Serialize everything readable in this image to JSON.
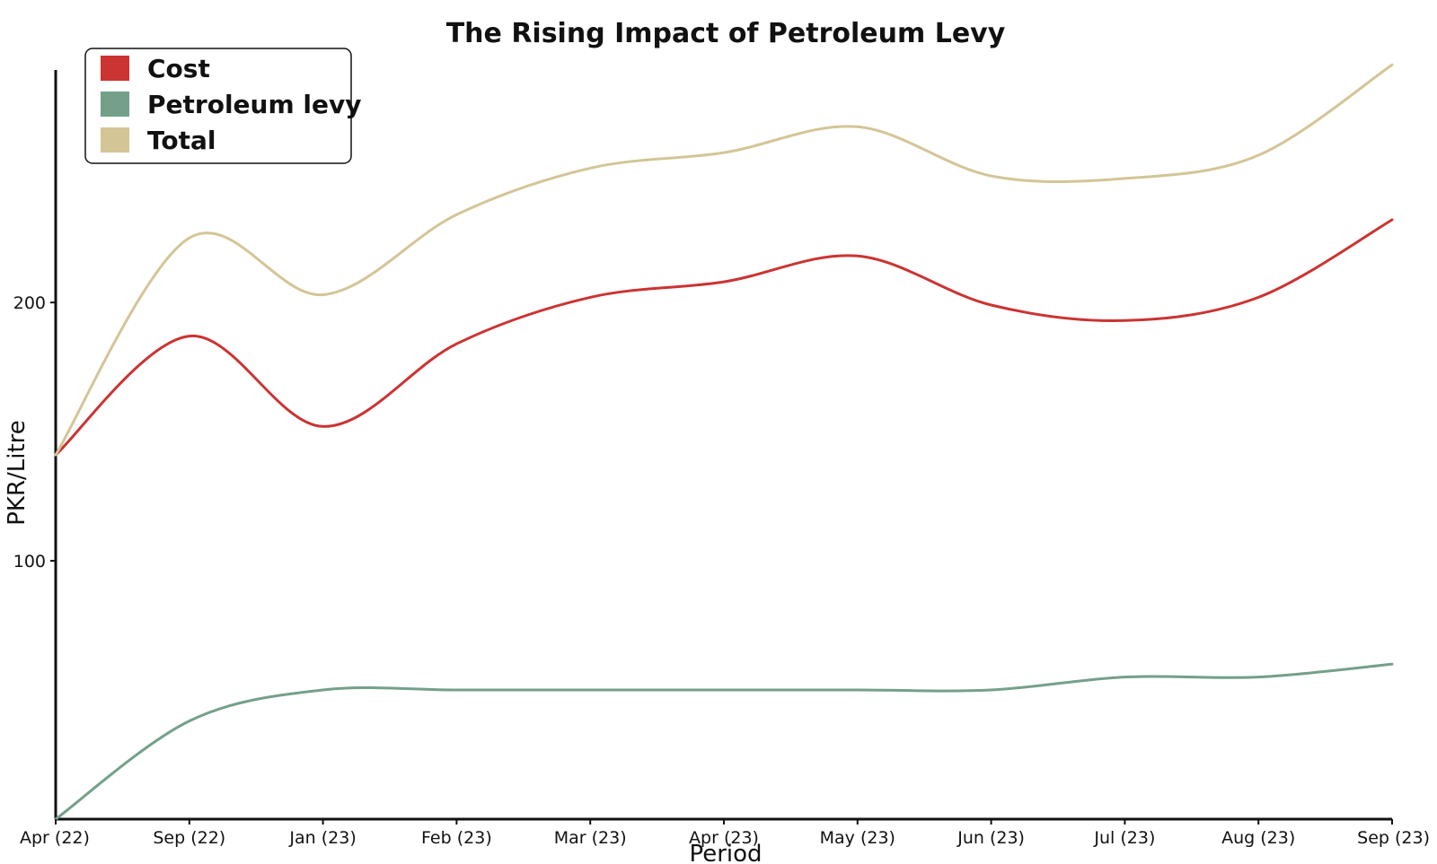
{
  "chart_data": {
    "type": "line",
    "title": "The Rising Impact of Petroleum Levy",
    "xlabel": "Period",
    "ylabel": "PKR/Litre",
    "categories": [
      "Apr (22)",
      "Sep (22)",
      "Jan (23)",
      "Feb (23)",
      "Mar (23)",
      "Apr (23)",
      "May (23)",
      "Jun (23)",
      "Jul (23)",
      "Aug (23)",
      "Sep (23)"
    ],
    "ylim": [
      0,
      290
    ],
    "yticks": [
      100,
      200
    ],
    "grid": false,
    "legend_position": "top-left",
    "series": [
      {
        "name": "Cost",
        "color": "#cc3333",
        "values": [
          141,
          187,
          152,
          184,
          202,
          208,
          218,
          199,
          193,
          202,
          232
        ]
      },
      {
        "name": "Petroleum levy",
        "color": "#74a08a",
        "values": [
          0,
          38,
          50,
          50,
          50,
          50,
          50,
          50,
          55,
          55,
          60
        ]
      },
      {
        "name": "Total",
        "color": "#d4c597",
        "values": [
          141,
          225,
          203,
          234,
          252,
          258,
          268,
          249,
          248,
          257,
          292
        ]
      }
    ]
  }
}
